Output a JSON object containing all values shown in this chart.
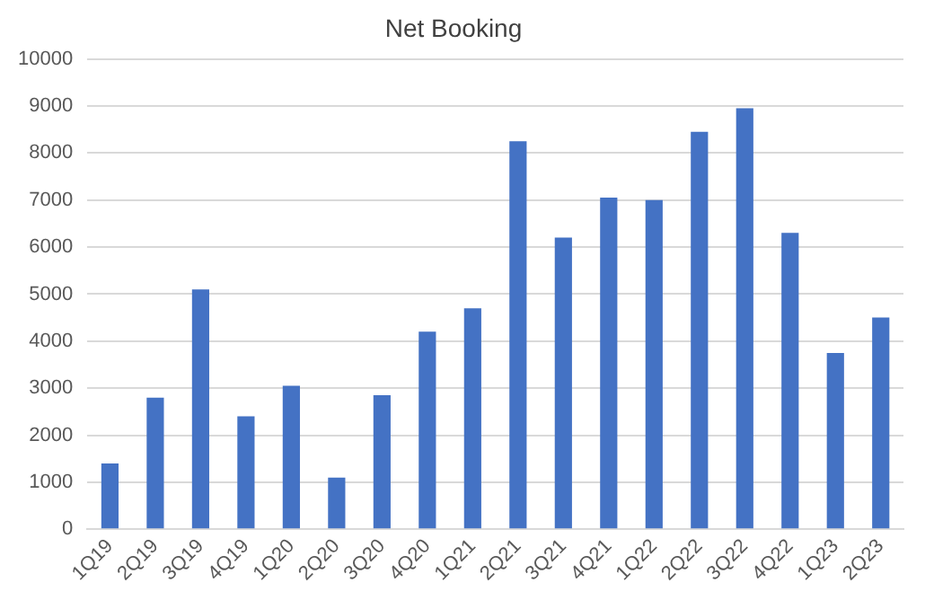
{
  "chart_data": {
    "type": "bar",
    "title": "Net Booking",
    "categories": [
      "1Q19",
      "2Q19",
      "3Q19",
      "4Q19",
      "1Q20",
      "2Q20",
      "3Q20",
      "4Q20",
      "1Q21",
      "2Q21",
      "3Q21",
      "4Q21",
      "1Q22",
      "2Q22",
      "3Q22",
      "4Q22",
      "1Q23",
      "2Q23"
    ],
    "values": [
      1400,
      2800,
      5100,
      2400,
      3050,
      1100,
      2850,
      4200,
      4700,
      8250,
      6200,
      7050,
      7000,
      8450,
      8950,
      6300,
      3750,
      4500
    ],
    "color": "#4472c4",
    "ylim": [
      0,
      10000
    ],
    "yticks": [
      0,
      1000,
      2000,
      3000,
      4000,
      5000,
      6000,
      7000,
      8000,
      9000,
      10000
    ],
    "grid": "y"
  }
}
